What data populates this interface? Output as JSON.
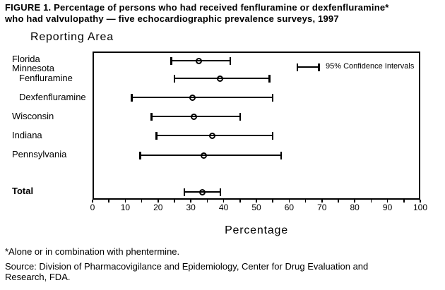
{
  "chart_data": {
    "type": "scatter",
    "title": "FIGURE 1. Percentage of persons who had received fenfluramine or dexfenfluramine* who had valvulopathy — five echocardiographic prevalence surveys, 1997",
    "title_lines": [
      "FIGURE 1. Percentage of persons who had received fenfluramine or dexfenfluramine*",
      "who had valvulopathy — five echocardiographic prevalence surveys, 1997"
    ],
    "ylabel": "Reporting Area",
    "xlabel": "Percentage",
    "xlim": [
      0,
      100
    ],
    "x_major_ticks": [
      0,
      10,
      20,
      30,
      40,
      50,
      60,
      70,
      80,
      90,
      100
    ],
    "x_minor_tick_step": 5,
    "grid": false,
    "legend_label": "95% Confidence Intervals",
    "legend_position": "top-right-inside",
    "rows": [
      {
        "label": "Florida",
        "point": 32.5,
        "ci_low": 24,
        "ci_high": 42
      },
      {
        "label": "Minnesota",
        "header": true
      },
      {
        "label": "Fenfluramine",
        "indent": true,
        "point": 39,
        "ci_low": 25,
        "ci_high": 54
      },
      {
        "label": "Dexfenfluramine",
        "indent": true,
        "point": 30.5,
        "ci_low": 12,
        "ci_high": 55
      },
      {
        "label": "Wisconsin",
        "point": 31,
        "ci_low": 18,
        "ci_high": 45
      },
      {
        "label": "Indiana",
        "point": 36.5,
        "ci_low": 19.5,
        "ci_high": 55
      },
      {
        "label": "Pennsylvania",
        "point": 34,
        "ci_low": 14.5,
        "ci_high": 57.5
      },
      {
        "label": "Total",
        "bold": true,
        "point": 33.5,
        "ci_low": 28,
        "ci_high": 39
      }
    ],
    "footnote": "*Alone or in combination with phentermine.",
    "source_lines": [
      "Source: Division of Pharmacovigilance and Epidemiology, Center for Drug Evaluation and",
      "Research, FDA."
    ],
    "colors": {
      "foreground": "#000000",
      "background": "#ffffff"
    }
  }
}
